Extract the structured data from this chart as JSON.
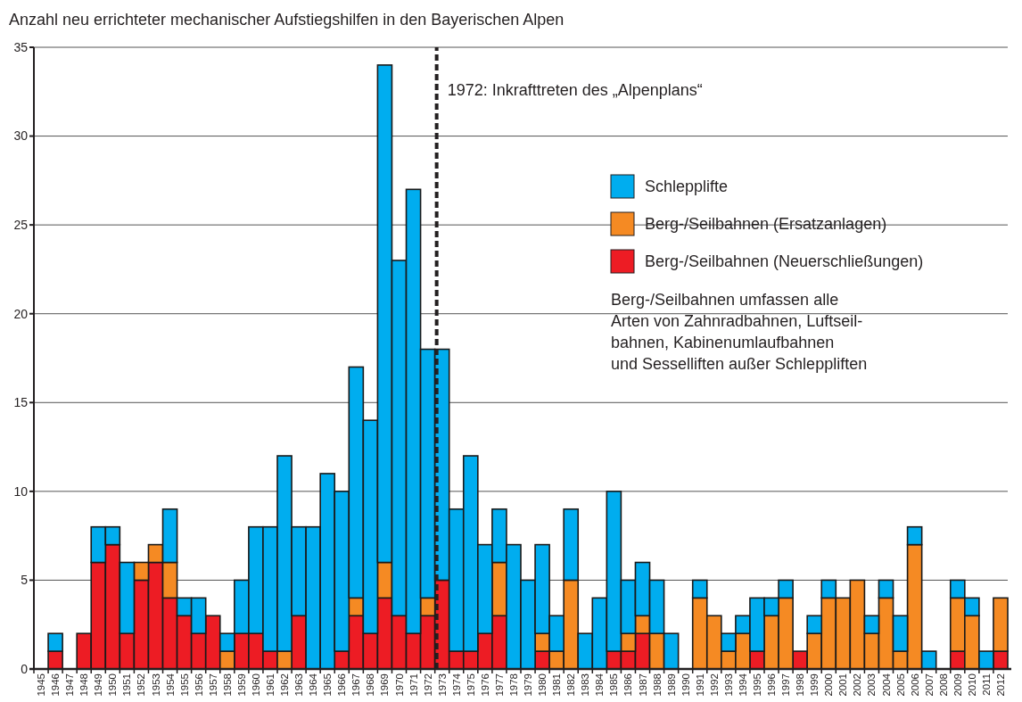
{
  "chart_data": {
    "type": "bar",
    "stacked": true,
    "title": "Anzahl neu errichteter mechanischer Aufstiegshilfen in den Bayerischen Alpen",
    "categories": [
      "1945",
      "1946",
      "1947",
      "1948",
      "1949",
      "1950",
      "1951",
      "1952",
      "1953",
      "1954",
      "1955",
      "1956",
      "1957",
      "1958",
      "1959",
      "1960",
      "1961",
      "1962",
      "1963",
      "1964",
      "1965",
      "1966",
      "1967",
      "1968",
      "1969",
      "1970",
      "1971",
      "1972",
      "1973",
      "1974",
      "1975",
      "1976",
      "1977",
      "1978",
      "1979",
      "1980",
      "1981",
      "1982",
      "1983",
      "1984",
      "1985",
      "1986",
      "1987",
      "1988",
      "1989",
      "1990",
      "1991",
      "1992",
      "1993",
      "1994",
      "1995",
      "1996",
      "1997",
      "1998",
      "1999",
      "2000",
      "2001",
      "2002",
      "2003",
      "2004",
      "2005",
      "2006",
      "2007",
      "2008",
      "2009",
      "2010",
      "2011",
      "2012"
    ],
    "series": [
      {
        "name": "Berg-/Seilbahnen (Neuerschließungen)",
        "color": "#ed1c24",
        "values": [
          0,
          1,
          0,
          2,
          6,
          7,
          2,
          5,
          6,
          4,
          3,
          2,
          3,
          0,
          2,
          2,
          1,
          0,
          3,
          0,
          0,
          1,
          3,
          2,
          4,
          3,
          2,
          3,
          5,
          1,
          1,
          2,
          3,
          0,
          0,
          1,
          0,
          0,
          0,
          0,
          1,
          1,
          2,
          0,
          0,
          0,
          0,
          0,
          0,
          0,
          1,
          0,
          0,
          1,
          0,
          0,
          0,
          0,
          0,
          0,
          0,
          0,
          0,
          0,
          1,
          0,
          0,
          1
        ]
      },
      {
        "name": "Berg-/Seilbahnen (Ersatzanlagen)",
        "color": "#f58a23",
        "values": [
          0,
          0,
          0,
          0,
          0,
          0,
          0,
          1,
          1,
          2,
          0,
          0,
          0,
          1,
          0,
          0,
          0,
          1,
          0,
          0,
          0,
          0,
          1,
          0,
          2,
          0,
          0,
          1,
          0,
          0,
          0,
          0,
          3,
          0,
          0,
          1,
          1,
          5,
          0,
          0,
          0,
          1,
          1,
          2,
          0,
          0,
          4,
          3,
          1,
          2,
          0,
          3,
          4,
          0,
          2,
          4,
          4,
          5,
          2,
          4,
          1,
          7,
          0,
          0,
          3,
          3,
          0,
          3
        ]
      },
      {
        "name": "Schlepplifte",
        "color": "#00adef",
        "values": [
          0,
          1,
          0,
          0,
          2,
          1,
          4,
          0,
          0,
          3,
          1,
          2,
          0,
          1,
          3,
          6,
          7,
          11,
          5,
          8,
          11,
          9,
          13,
          12,
          28,
          20,
          25,
          14,
          13,
          8,
          11,
          5,
          3,
          7,
          5,
          5,
          2,
          4,
          2,
          4,
          9,
          3,
          3,
          3,
          2,
          0,
          1,
          0,
          1,
          1,
          3,
          1,
          1,
          0,
          1,
          1,
          0,
          0,
          1,
          1,
          2,
          1,
          1,
          0,
          1,
          1,
          1,
          0
        ]
      }
    ],
    "ylim": [
      0,
      35
    ],
    "yticks": [
      0,
      5,
      10,
      15,
      20,
      25,
      30,
      35
    ],
    "grid": "y",
    "legend": "right",
    "ref_lines": [
      {
        "axis": "x",
        "value": "1973",
        "label": "1972: Inkrafttreten des „Alpenplans“",
        "line_style": "dashed"
      }
    ],
    "annotations": [
      "Berg-/Seilbahnen umfassen alle\nArten von Zahnradbahnen, Luftseil-\nbahnen, Kabinenumlaufbahnen\nund Sesselliften außer Schleppliften"
    ]
  }
}
